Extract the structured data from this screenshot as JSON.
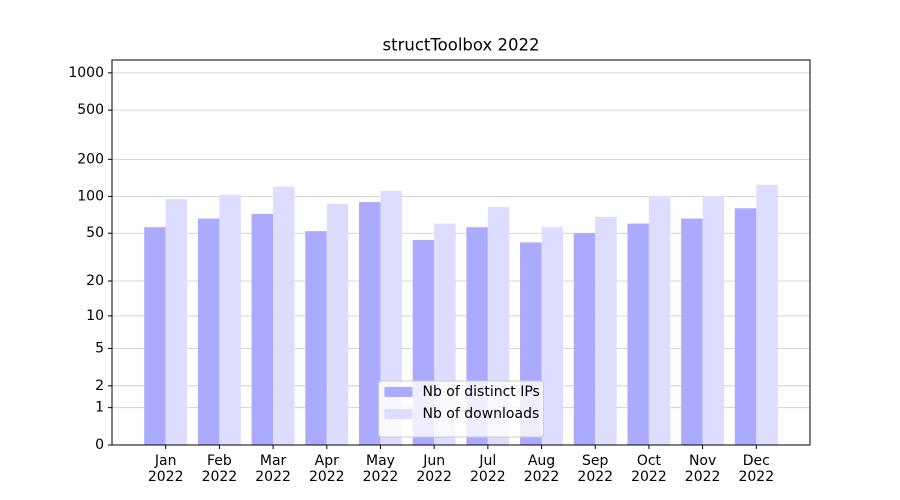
{
  "chart_data": {
    "type": "bar",
    "title": "structToolbox 2022",
    "categories": [
      "Jan\n2022",
      "Feb\n2022",
      "Mar\n2022",
      "Apr\n2022",
      "May\n2022",
      "Jun\n2022",
      "Jul\n2022",
      "Aug\n2022",
      "Sep\n2022",
      "Oct\n2022",
      "Nov\n2022",
      "Dec\n2022"
    ],
    "series": [
      {
        "name": "Nb of distinct IPs",
        "color": "#aaaaff",
        "values": [
          56,
          66,
          72,
          52,
          90,
          44,
          56,
          42,
          50,
          60,
          66,
          80
        ]
      },
      {
        "name": "Nb of downloads",
        "color": "#ddddff",
        "values": [
          95,
          103,
          120,
          87,
          111,
          60,
          82,
          56,
          68,
          101,
          101,
          124
        ]
      }
    ],
    "y_scale": "log1p",
    "ylim": [
      0,
      1270
    ],
    "yticks": [
      0,
      1,
      2,
      5,
      10,
      20,
      50,
      100,
      200,
      500,
      1000
    ],
    "grid": true,
    "legend": "lower center"
  }
}
